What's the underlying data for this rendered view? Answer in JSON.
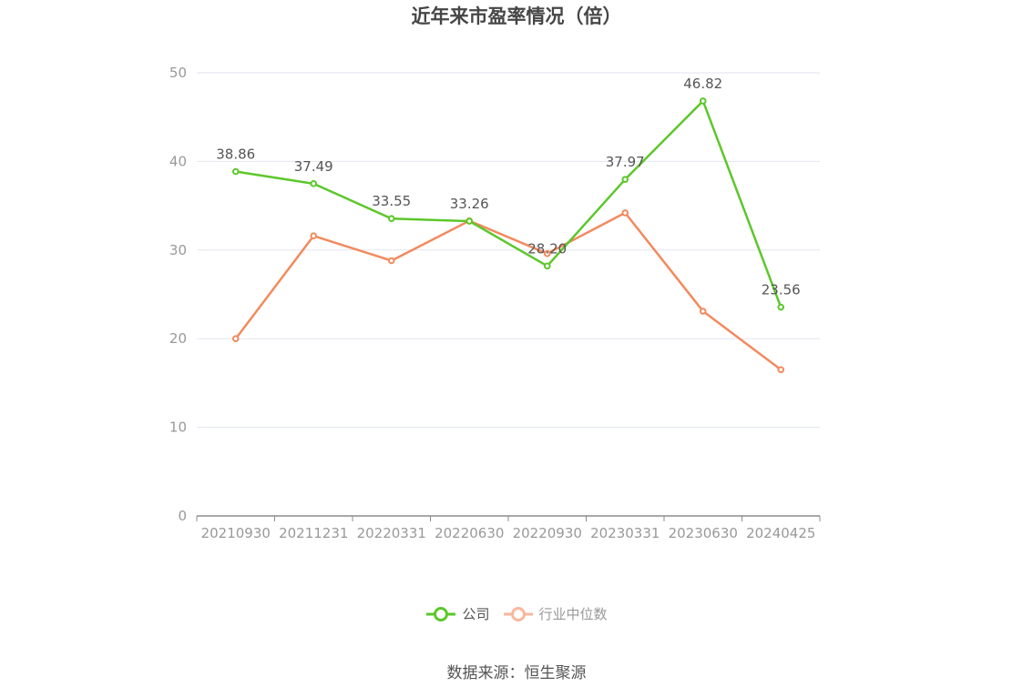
{
  "title": "近年来市盈率情况（倍）",
  "source": "数据来源：恒生聚源",
  "legend": [
    {
      "label": "公司",
      "color": "#5cc72b",
      "text_color": "#555555"
    },
    {
      "label": "行业中位数",
      "color": "#f9b79e",
      "text_color": "#999999"
    }
  ],
  "chart_data": {
    "type": "line",
    "title": "近年来市盈率情况（倍）",
    "xlabel": "",
    "ylabel": "",
    "categories": [
      "20210930",
      "20211231",
      "20220331",
      "20220630",
      "20220930",
      "20230331",
      "20230630",
      "20240425"
    ],
    "ylim": [
      0,
      50
    ],
    "yticks": [
      "0",
      "10",
      "20",
      "30",
      "40",
      "50"
    ],
    "grid": true,
    "legend_position": "bottom",
    "series": [
      {
        "name": "公司",
        "color": "#5cc72b",
        "values": [
          38.86,
          37.49,
          33.55,
          33.26,
          28.2,
          37.97,
          46.82,
          23.56
        ],
        "labels": [
          "38.86",
          "37.49",
          "33.55",
          "33.26",
          "28.20",
          "37.97",
          "46.82",
          "23.56"
        ]
      },
      {
        "name": "行业中位数",
        "color": "#f28a5e",
        "values": [
          20.0,
          31.6,
          28.8,
          33.3,
          29.6,
          34.2,
          23.1,
          16.5
        ]
      }
    ]
  }
}
